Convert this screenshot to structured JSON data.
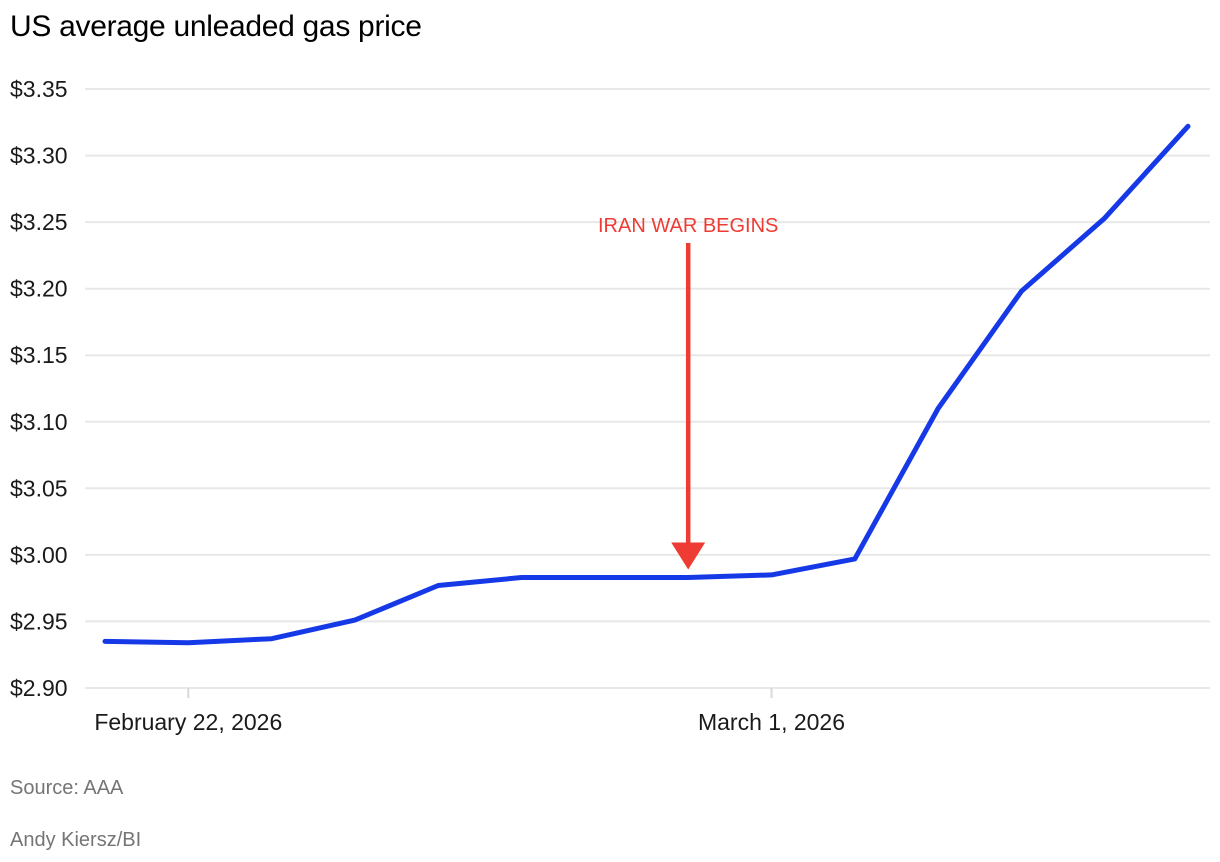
{
  "header": {
    "title": "US average unleaded gas price"
  },
  "chart_data": {
    "type": "line",
    "title": "US average unleaded gas price",
    "xlabel": "",
    "ylabel": "",
    "x": [
      "Feb 21, 2026",
      "Feb 22, 2026",
      "Feb 23, 2026",
      "Feb 24, 2026",
      "Feb 25, 2026",
      "Feb 26, 2026",
      "Feb 27, 2026",
      "Feb 28, 2026",
      "Mar 1, 2026",
      "Mar 2, 2026",
      "Mar 3, 2026",
      "Mar 4, 2026",
      "Mar 5, 2026",
      "Mar 6, 2026"
    ],
    "series": [
      {
        "name": "US average unleaded gas price ($/gal)",
        "values": [
          2.935,
          2.934,
          2.937,
          2.951,
          2.977,
          2.983,
          2.983,
          2.983,
          2.985,
          2.997,
          3.11,
          3.198,
          3.253,
          3.322
        ]
      }
    ],
    "ylim": [
      2.9,
      3.35
    ],
    "y_ticks": [
      2.9,
      2.95,
      3.0,
      3.05,
      3.1,
      3.15,
      3.2,
      3.25,
      3.3,
      3.35
    ],
    "y_tick_labels": [
      "$2.90",
      "$2.95",
      "$3.00",
      "$3.05",
      "$3.10",
      "$3.15",
      "$3.20",
      "$3.25",
      "$3.30",
      "$3.35"
    ],
    "x_ticks": [
      {
        "index": 1,
        "label": "February 22, 2026"
      },
      {
        "index": 8,
        "label": "March 1, 2026"
      }
    ],
    "annotation": {
      "text": "IRAN WAR BEGINS",
      "point_index": 7,
      "points_to_value": 2.983
    },
    "grid": "horizontal",
    "legend_position": "none"
  },
  "footer": {
    "source": "Source: AAA",
    "credit": "Andy Kiersz/BI"
  },
  "colors": {
    "line": "#1639e8",
    "annotation": "#ee3b33",
    "gridline": "#e8e8e8",
    "tick": "#d9d9d9",
    "axis_text": "#1a1a1a",
    "footer_text": "#757575",
    "title_text": "#000000",
    "background": "#ffffff"
  }
}
